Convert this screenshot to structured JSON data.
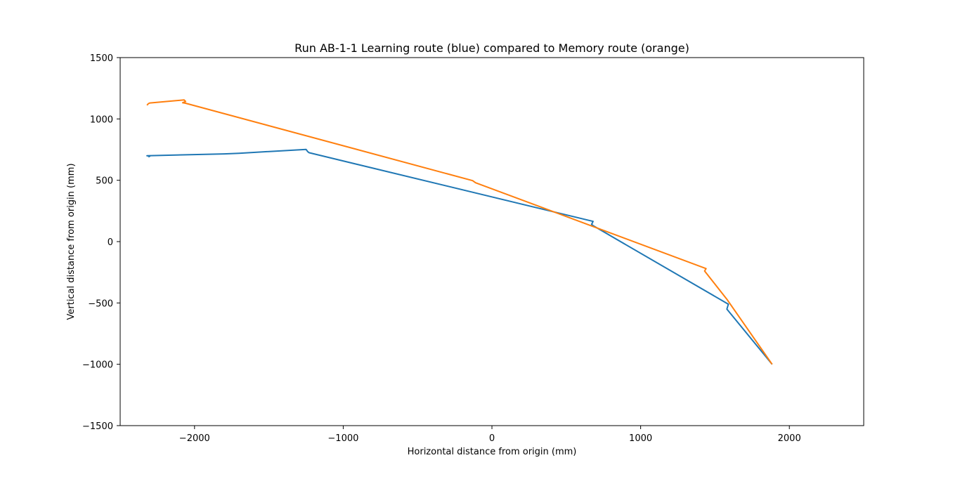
{
  "chart_data": {
    "type": "line",
    "title": "Run AB-1-1 Learning route (blue) compared to Memory route (orange)",
    "xlabel": "Horizontal distance from origin (mm)",
    "ylabel": "Vertical distance from origin (mm)",
    "xlim": [
      -2500,
      2500
    ],
    "ylim": [
      -1500,
      1500
    ],
    "xticks": [
      -2000,
      -1000,
      0,
      1000,
      2000
    ],
    "xtick_labels": [
      "−2000",
      "−1000",
      "0",
      "1000",
      "2000"
    ],
    "yticks": [
      -1500,
      -1000,
      -500,
      0,
      500,
      1000,
      1500
    ],
    "ytick_labels": [
      "−1500",
      "−1000",
      "−500",
      "0",
      "500",
      "1000",
      "1500"
    ],
    "grid": false,
    "legend": "none",
    "series": [
      {
        "color": "#1f77b4",
        "x": [
          -2310,
          -2300,
          -2320,
          -1800,
          -1700,
          -1250,
          -1240,
          -1230,
          680,
          670,
          680,
          1590,
          1580,
          1620,
          1884
        ],
        "y": [
          690,
          697,
          700,
          715,
          720,
          752,
          735,
          725,
          165,
          140,
          130,
          -510,
          -550,
          -610,
          -1000
        ]
      },
      {
        "color": "#ff7f0e",
        "x": [
          -2320,
          -2310,
          -2300,
          -2070,
          -2060,
          -2080,
          -2060,
          -130,
          -110,
          1440,
          1430,
          1580,
          1884
        ],
        "y": [
          1112,
          1125,
          1130,
          1155,
          1142,
          1132,
          1128,
          497,
          480,
          -220,
          -240,
          -470,
          -1000
        ]
      }
    ]
  }
}
